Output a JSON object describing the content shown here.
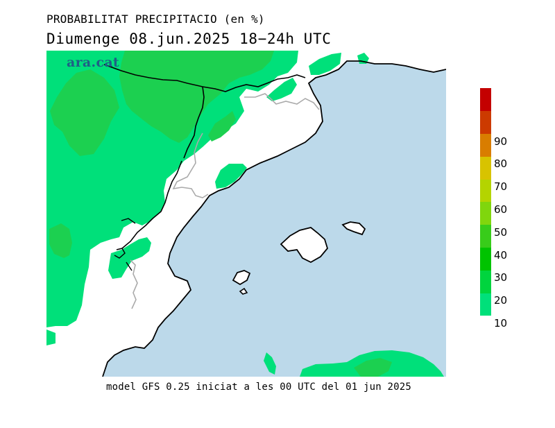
{
  "header": {
    "title": "PROBABILITAT PRECIPITACIO (en %)",
    "subtitle": "Diumenge  08.jun.2025 18−24h UTC"
  },
  "logo_text": "ara.cat",
  "footer": "model GFS 0.25 iniciat a les 00 UTC del 01 jun 2025",
  "legend": {
    "ticks": [
      "10",
      "20",
      "30",
      "40",
      "50",
      "60",
      "70",
      "80",
      "90"
    ],
    "colors": [
      "#00e07a",
      "#00d43e",
      "#00c300",
      "#38cc1a",
      "#80d60d",
      "#b4d400",
      "#d8c300",
      "#d97d00",
      "#cc3a00",
      "#c40000"
    ]
  },
  "map_colors": {
    "sea": "#bcd9ea",
    "land": "#ffffff",
    "prob_10_20": "#00e07a",
    "prob_20_30": "#1cd050",
    "coast": "#000000",
    "border": "#aaaaaa"
  }
}
